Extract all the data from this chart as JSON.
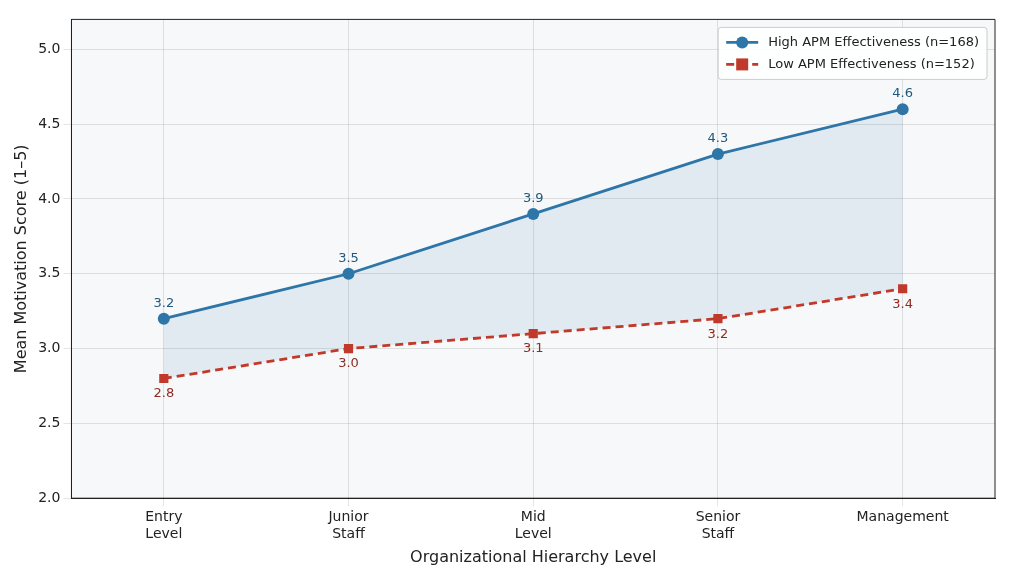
{
  "chart_data": {
    "type": "line",
    "xlabel": "Organizational Hierarchy Level",
    "ylabel": "Mean Motivation Score (1–5)",
    "categories": [
      "Entry Level",
      "Junior Staff",
      "Mid Level",
      "Senior Staff",
      "Management"
    ],
    "series": [
      {
        "name": "High APM Effectiveness (n=168)",
        "color": "#2e75a8",
        "values": [
          3.2,
          3.5,
          3.9,
          4.3,
          4.6
        ],
        "value_labels": [
          "3.2",
          "3.5",
          "3.9",
          "4.3",
          "4.6"
        ],
        "marker": "circle",
        "line_style": "solid",
        "lower": [
          2.8,
          3.0,
          3.1,
          3.2,
          3.4
        ],
        "upper": [
          3.2,
          3.5,
          3.9,
          4.3,
          4.6
        ]
      },
      {
        "name": "Low APM Effectiveness (n=152)",
        "color": "#c0392b",
        "values": [
          2.8,
          3.0,
          3.1,
          3.2,
          3.4
        ],
        "value_labels": [
          "2.8",
          "3.0",
          "3.1",
          "3.2",
          "3.4"
        ],
        "marker": "square",
        "line_style": "dashed"
      }
    ],
    "ylim": [
      2.0,
      5.2
    ],
    "yticks": [
      "2.0",
      "2.5",
      "3.0",
      "3.5",
      "4.0",
      "4.5",
      "5.0"
    ],
    "grid": true,
    "legend": "top right"
  }
}
